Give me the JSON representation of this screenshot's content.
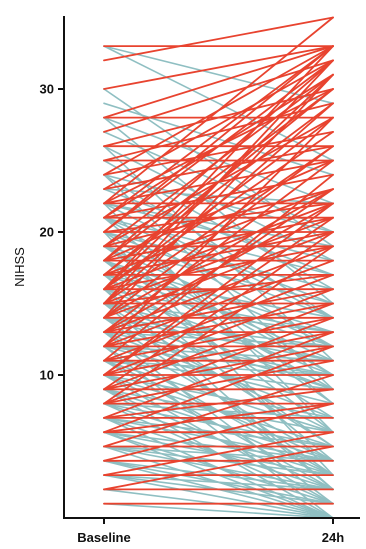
{
  "chart_data": {
    "type": "line",
    "ylabel": "NIHSS",
    "xlabel": "",
    "x_categories": [
      "Baseline",
      "24h"
    ],
    "ylim": [
      0,
      35
    ],
    "yticks": [
      10,
      20,
      30
    ],
    "grid": false,
    "legend": "none",
    "colors": {
      "improved": "#8FBFC2",
      "worsened": "#E8432F",
      "axis": "#111111"
    },
    "series": [
      {
        "group": "improved",
        "pairs": [
          [
            33,
            29
          ],
          [
            29,
            24
          ],
          [
            28,
            22
          ],
          [
            27,
            20
          ],
          [
            26,
            18
          ],
          [
            25,
            16
          ],
          [
            24,
            14
          ],
          [
            23,
            22
          ],
          [
            22,
            19
          ],
          [
            22,
            14
          ],
          [
            21,
            17
          ],
          [
            21,
            12
          ],
          [
            20,
            16
          ],
          [
            20,
            10
          ],
          [
            19,
            15
          ],
          [
            19,
            8
          ],
          [
            18,
            13
          ],
          [
            18,
            6
          ],
          [
            17,
            12
          ],
          [
            17,
            4
          ],
          [
            16,
            10
          ],
          [
            16,
            2
          ],
          [
            15,
            11
          ],
          [
            15,
            5
          ],
          [
            14,
            9
          ],
          [
            14,
            3
          ],
          [
            13,
            7
          ],
          [
            13,
            1
          ],
          [
            12,
            8
          ],
          [
            12,
            0
          ],
          [
            11,
            6
          ],
          [
            11,
            2
          ],
          [
            10,
            5
          ],
          [
            10,
            1
          ],
          [
            9,
            4
          ],
          [
            9,
            0
          ],
          [
            8,
            3
          ],
          [
            8,
            7
          ],
          [
            7,
            2
          ],
          [
            7,
            0
          ],
          [
            6,
            1
          ],
          [
            6,
            4
          ],
          [
            5,
            0
          ],
          [
            5,
            3
          ],
          [
            4,
            1
          ],
          [
            4,
            2
          ],
          [
            3,
            0
          ],
          [
            3,
            1
          ],
          [
            2,
            0
          ],
          [
            1,
            0
          ],
          [
            33,
            25
          ],
          [
            30,
            19
          ],
          [
            28,
            15
          ],
          [
            26,
            11
          ],
          [
            24,
            9
          ],
          [
            22,
            6
          ],
          [
            20,
            3
          ],
          [
            19,
            12
          ],
          [
            18,
            9
          ],
          [
            17,
            7
          ],
          [
            16,
            5
          ],
          [
            15,
            2
          ],
          [
            14,
            6
          ],
          [
            13,
            4
          ],
          [
            12,
            3
          ],
          [
            11,
            9
          ],
          [
            10,
            7
          ],
          [
            9,
            6
          ],
          [
            8,
            5
          ],
          [
            7,
            4
          ],
          [
            6,
            3
          ],
          [
            5,
            2
          ],
          [
            24,
            20
          ],
          [
            23,
            17
          ],
          [
            21,
            8
          ],
          [
            20,
            14
          ],
          [
            18,
            11
          ],
          [
            15,
            9
          ],
          [
            14,
            12
          ],
          [
            13,
            10
          ],
          [
            12,
            10
          ],
          [
            11,
            4
          ],
          [
            10,
            3
          ],
          [
            9,
            2
          ],
          [
            8,
            1
          ],
          [
            7,
            5
          ],
          [
            6,
            0
          ],
          [
            5,
            4
          ],
          [
            4,
            0
          ],
          [
            3,
            2
          ],
          [
            22,
            18
          ],
          [
            21,
            15
          ],
          [
            19,
            10
          ],
          [
            17,
            14
          ],
          [
            16,
            13
          ],
          [
            15,
            13
          ],
          [
            14,
            11
          ],
          [
            13,
            12
          ],
          [
            12,
            11
          ],
          [
            11,
            10
          ]
        ]
      },
      {
        "group": "worsened",
        "pairs": [
          [
            33,
            33
          ],
          [
            32,
            35
          ],
          [
            28,
            28
          ],
          [
            26,
            26
          ],
          [
            25,
            25
          ],
          [
            24,
            33
          ],
          [
            23,
            32
          ],
          [
            22,
            22
          ],
          [
            22,
            30
          ],
          [
            21,
            21
          ],
          [
            21,
            31
          ],
          [
            20,
            20
          ],
          [
            20,
            33
          ],
          [
            19,
            19
          ],
          [
            19,
            28
          ],
          [
            18,
            18
          ],
          [
            18,
            32
          ],
          [
            18,
            25
          ],
          [
            17,
            17
          ],
          [
            17,
            30
          ],
          [
            17,
            23
          ],
          [
            16,
            16
          ],
          [
            16,
            33
          ],
          [
            16,
            22
          ],
          [
            16,
            27
          ],
          [
            15,
            15
          ],
          [
            15,
            29
          ],
          [
            15,
            21
          ],
          [
            14,
            14
          ],
          [
            14,
            31
          ],
          [
            14,
            20
          ],
          [
            14,
            26
          ],
          [
            13,
            13
          ],
          [
            13,
            25
          ],
          [
            13,
            19
          ],
          [
            12,
            12
          ],
          [
            12,
            28
          ],
          [
            12,
            18
          ],
          [
            12,
            23
          ],
          [
            11,
            11
          ],
          [
            11,
            24
          ],
          [
            11,
            17
          ],
          [
            10,
            10
          ],
          [
            10,
            22
          ],
          [
            10,
            16
          ],
          [
            10,
            21
          ],
          [
            9,
            9
          ],
          [
            9,
            20
          ],
          [
            9,
            15
          ],
          [
            8,
            8
          ],
          [
            8,
            19
          ],
          [
            8,
            14
          ],
          [
            7,
            7
          ],
          [
            7,
            13
          ],
          [
            6,
            6
          ],
          [
            6,
            12
          ],
          [
            5,
            5
          ],
          [
            5,
            10
          ],
          [
            4,
            4
          ],
          [
            4,
            8
          ],
          [
            3,
            3
          ],
          [
            3,
            6
          ],
          [
            2,
            2
          ],
          [
            2,
            5
          ],
          [
            1,
            1
          ],
          [
            15,
            17
          ],
          [
            16,
            19
          ],
          [
            17,
            20
          ],
          [
            18,
            21
          ],
          [
            19,
            23
          ],
          [
            20,
            22
          ],
          [
            21,
            24
          ],
          [
            22,
            25
          ],
          [
            23,
            26
          ],
          [
            24,
            27
          ],
          [
            25,
            29
          ],
          [
            26,
            30
          ],
          [
            27,
            32
          ],
          [
            28,
            33
          ],
          [
            30,
            33
          ],
          [
            13,
            16
          ],
          [
            12,
            15
          ],
          [
            11,
            14
          ],
          [
            10,
            13
          ],
          [
            9,
            12
          ],
          [
            8,
            11
          ],
          [
            7,
            9
          ],
          [
            6,
            8
          ],
          [
            15,
            26
          ],
          [
            14,
            23
          ],
          [
            13,
            22
          ],
          [
            16,
            28
          ],
          [
            17,
            29
          ],
          [
            18,
            30
          ],
          [
            19,
            31
          ],
          [
            20,
            32
          ],
          [
            21,
            33
          ],
          [
            22,
            35
          ],
          [
            15,
            32
          ],
          [
            16,
            31
          ]
        ]
      }
    ]
  }
}
